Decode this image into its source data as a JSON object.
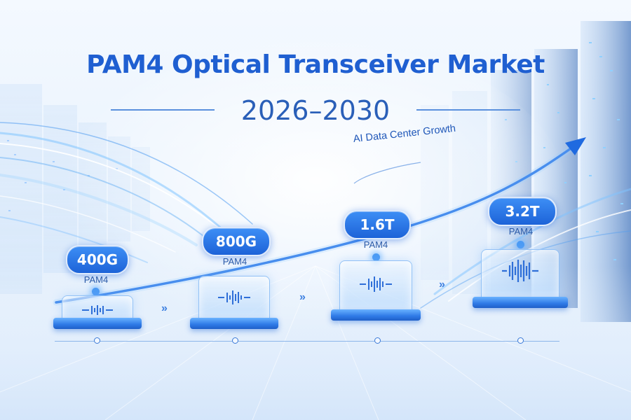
{
  "title": "PAM4 Optical Transceiver Market",
  "subtitle": "2026–2030",
  "growth_label": "AI Data Center Growth",
  "colors": {
    "title": "#1f5fd1",
    "pill": "#1d63d8",
    "arrow": "#1f6ae0",
    "background": "#eef5fe"
  },
  "stages": [
    {
      "speed": "400G",
      "modulation": "PAM4",
      "icon": "waveform-icon"
    },
    {
      "speed": "800G",
      "modulation": "PAM4",
      "icon": "waveform-icon"
    },
    {
      "speed": "1.6T",
      "modulation": "PAM4",
      "icon": "waveform-icon"
    },
    {
      "speed": "3.2T",
      "modulation": "PAM4",
      "icon": "waveform-icon"
    }
  ],
  "separator_glyph": "»"
}
